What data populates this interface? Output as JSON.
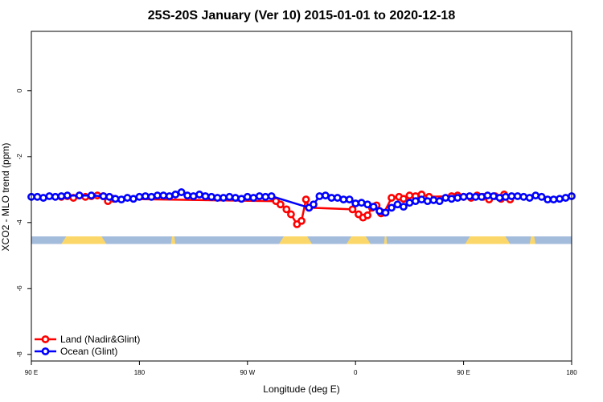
{
  "chart_data": {
    "type": "line",
    "title": "25S-20S January (Ver 10)   2015-01-01 to 2020-12-18",
    "xlabel": "Longitude (deg E)",
    "ylabel": "XCO2 - MLO trend (ppm)",
    "xlim": [
      90,
      450
    ],
    "ylim": [
      -8.2,
      1.8
    ],
    "x_tick_values": [
      90,
      162,
      234,
      306,
      378,
      450
    ],
    "x_tick_labels": [
      "90 E",
      "180",
      "90 W",
      "0",
      "90 E",
      "180"
    ],
    "y_tick_values": [
      0,
      -2,
      -4,
      -6,
      -8
    ],
    "y_tick_labels": [
      "0",
      "-2",
      "-4",
      "-6",
      "-8"
    ],
    "grid": false,
    "legend_position": "bottom-left",
    "colors": {
      "land": "#ff0000",
      "ocean": "#0000ff",
      "mask_ocean": "#a4bcdc",
      "mask_land": "#fbd76a"
    },
    "land_mask": {
      "y_range": [
        -4.42,
        -4.65
      ],
      "land_intervals": [
        [
          110,
          140
        ],
        [
          183,
          186
        ],
        [
          255,
          277
        ],
        [
          300,
          316
        ],
        [
          325,
          327
        ],
        [
          379,
          409
        ],
        [
          422,
          426
        ]
      ]
    },
    "series": [
      {
        "name": "Land (Nadir&Glint)",
        "color": "#ff0000",
        "x": [
          110,
          114,
          118,
          122,
          126,
          130,
          134,
          138,
          141,
          145,
          253,
          256,
          260,
          263,
          267,
          270,
          273,
          275,
          304,
          308,
          311,
          314,
          317,
          320,
          323,
          325,
          330,
          335,
          338,
          342,
          346,
          350,
          355,
          370,
          374,
          378,
          383,
          387,
          391,
          395,
          399,
          403,
          405,
          409
        ],
        "y": [
          -3.22,
          -3.2,
          -3.25,
          -3.18,
          -3.22,
          -3.2,
          -3.18,
          -3.2,
          -3.35,
          -3.28,
          -3.35,
          -3.45,
          -3.6,
          -3.75,
          -4.05,
          -3.95,
          -3.3,
          -3.55,
          -3.6,
          -3.75,
          -3.85,
          -3.78,
          -3.55,
          -3.48,
          -3.72,
          -3.7,
          -3.25,
          -3.22,
          -3.28,
          -3.18,
          -3.2,
          -3.15,
          -3.22,
          -3.2,
          -3.18,
          -3.22,
          -3.25,
          -3.18,
          -3.22,
          -3.3,
          -3.2,
          -3.28,
          -3.15,
          -3.3
        ]
      },
      {
        "name": "Ocean (Glint)",
        "color": "#0000ff",
        "x": [
          90,
          94,
          98,
          102,
          106,
          110,
          114,
          122,
          130,
          138,
          142,
          146,
          150,
          154,
          158,
          162,
          166,
          170,
          174,
          178,
          182,
          186,
          190,
          194,
          198,
          202,
          206,
          210,
          214,
          218,
          222,
          226,
          230,
          234,
          238,
          242,
          246,
          250,
          275,
          278,
          282,
          286,
          290,
          294,
          298,
          302,
          306,
          310,
          314,
          318,
          322,
          326,
          330,
          334,
          338,
          342,
          346,
          350,
          354,
          358,
          362,
          366,
          370,
          374,
          378,
          382,
          386,
          390,
          394,
          398,
          402,
          406,
          410,
          414,
          418,
          422,
          426,
          430,
          434,
          438,
          442,
          446,
          450
        ],
        "y": [
          -3.22,
          -3.22,
          -3.25,
          -3.2,
          -3.22,
          -3.2,
          -3.18,
          -3.18,
          -3.18,
          -3.2,
          -3.22,
          -3.28,
          -3.3,
          -3.25,
          -3.28,
          -3.22,
          -3.2,
          -3.22,
          -3.18,
          -3.18,
          -3.2,
          -3.15,
          -3.08,
          -3.18,
          -3.2,
          -3.15,
          -3.2,
          -3.22,
          -3.25,
          -3.25,
          -3.22,
          -3.25,
          -3.28,
          -3.22,
          -3.25,
          -3.2,
          -3.22,
          -3.2,
          -3.55,
          -3.45,
          -3.2,
          -3.18,
          -3.25,
          -3.25,
          -3.3,
          -3.3,
          -3.42,
          -3.4,
          -3.45,
          -3.52,
          -3.65,
          -3.7,
          -3.55,
          -3.45,
          -3.52,
          -3.4,
          -3.35,
          -3.3,
          -3.35,
          -3.32,
          -3.35,
          -3.25,
          -3.28,
          -3.25,
          -3.22,
          -3.2,
          -3.22,
          -3.22,
          -3.18,
          -3.2,
          -3.25,
          -3.22,
          -3.2,
          -3.2,
          -3.22,
          -3.25,
          -3.18,
          -3.22,
          -3.3,
          -3.3,
          -3.28,
          -3.25,
          -3.2
        ]
      }
    ]
  }
}
